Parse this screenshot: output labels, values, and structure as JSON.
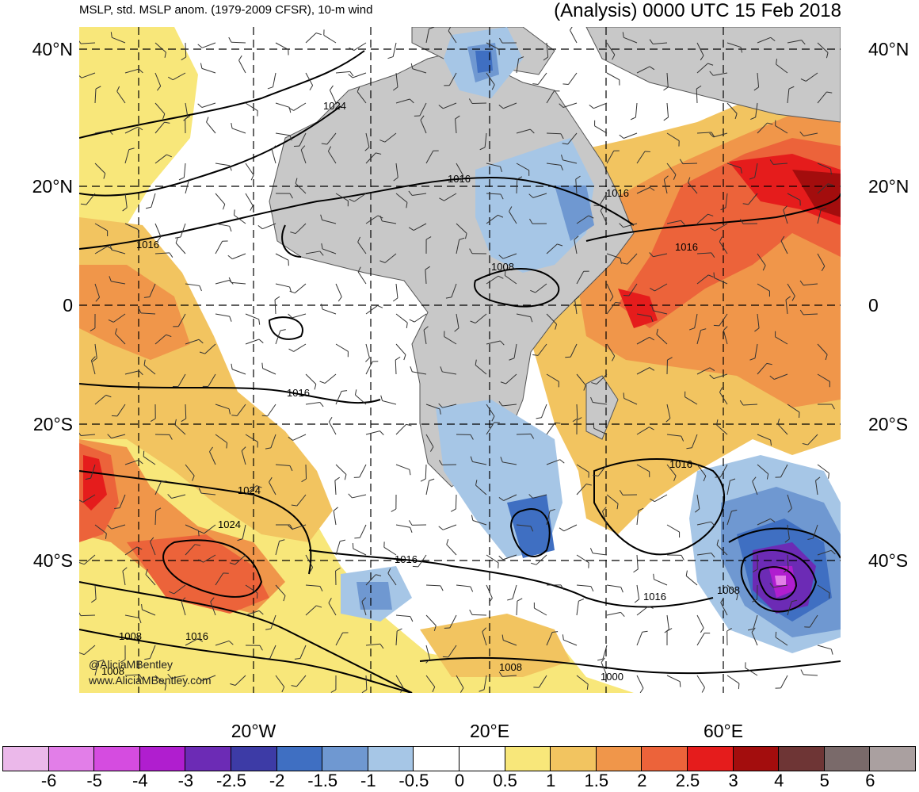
{
  "header": {
    "left_title": "MSLP, std. MSLP anom. (1979-2009 CFSR), 10-m wind",
    "right_title": "(Analysis) 0000 UTC 15 Feb 2018"
  },
  "lat_labels": [
    "40°N",
    "20°N",
    "0",
    "20°S",
    "40°S"
  ],
  "lon_labels": [
    "20°W",
    "20°E",
    "60°E"
  ],
  "isobar_labels": [
    "1024",
    "1016",
    "1016",
    "1016",
    "1008",
    "1016",
    "1016",
    "1024",
    "1024",
    "1016",
    "1016",
    "1008",
    "1016",
    "1008",
    "1008",
    "1000",
    "1008",
    "1016"
  ],
  "credits": {
    "twitter": "@AliciaMBentley",
    "website": "www.AliciaMBentley.com"
  },
  "colorbar": {
    "colors": [
      "#ebb8ea",
      "#e27ee8",
      "#d54ce0",
      "#b01ecf",
      "#6c2bb5",
      "#3d3ba6",
      "#3f6fc2",
      "#6f98d1",
      "#a6c6e6",
      "#ffffff",
      "#ffffff",
      "#f8e77a",
      "#f2c460",
      "#f0964a",
      "#ec633a",
      "#e51c1c",
      "#a30d0d",
      "#6e3535",
      "#7a6a6a",
      "#aaa0a0"
    ],
    "labels": [
      "-6",
      "-5",
      "-4",
      "-3",
      "-2.5",
      "-2",
      "-1.5",
      "-1",
      "-0.5",
      "0",
      "0.5",
      "1",
      "1.5",
      "2",
      "2.5",
      "3",
      "4",
      "5",
      "6"
    ]
  },
  "colors": {
    "land": "#c8c8c8",
    "ocean": "#ffffff"
  }
}
